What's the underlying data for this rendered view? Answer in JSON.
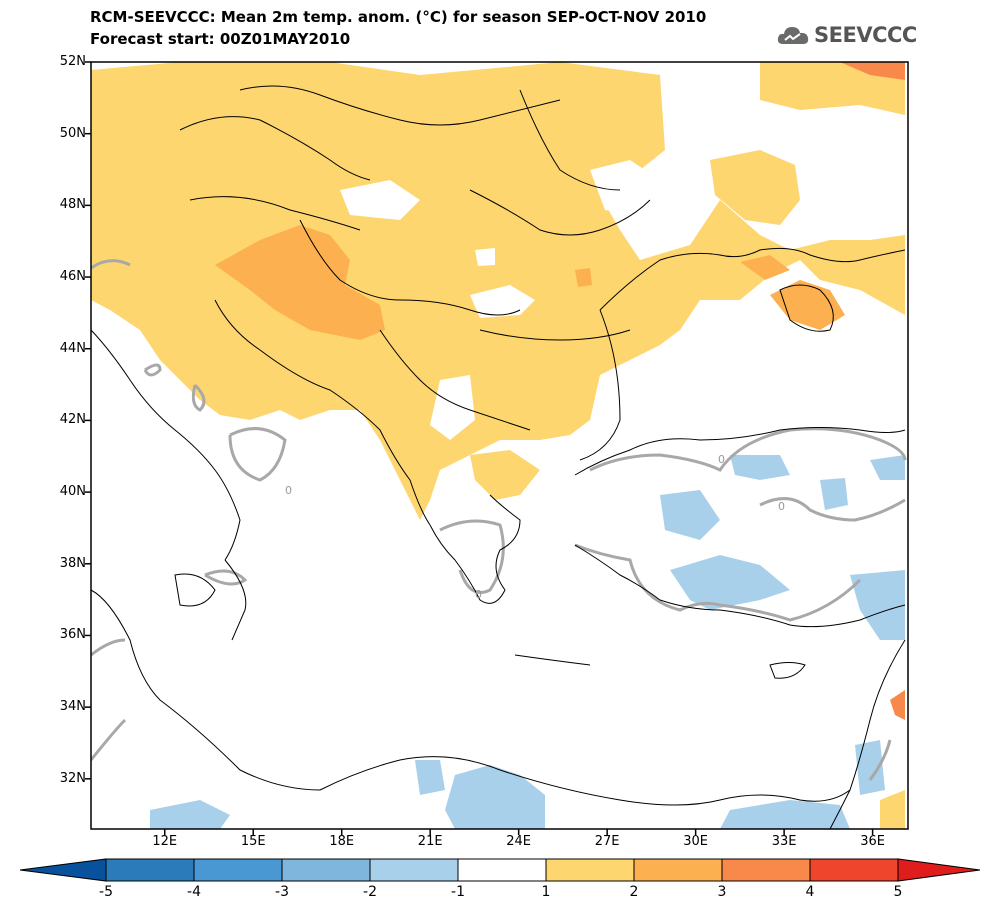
{
  "header": {
    "title_line1": "RCM-SEEVCCC: Mean 2m temp. anom. (°C) for season SEP-OCT-NOV 2010",
    "title_line2": "Forecast start: 00Z01MAY2010"
  },
  "logo": {
    "text": "SEEVCCC",
    "icon": "cloud-icon",
    "color": "#555555"
  },
  "map": {
    "lon_range": [
      9.5,
      37.2
    ],
    "lat_range": [
      30.6,
      52.0
    ],
    "lon_ticks": [
      "12E",
      "15E",
      "18E",
      "21E",
      "24E",
      "27E",
      "30E",
      "33E",
      "36E"
    ],
    "lat_ticks": [
      "52N",
      "50N",
      "48N",
      "46N",
      "44N",
      "42N",
      "40N",
      "38N",
      "36N",
      "34N",
      "32N"
    ],
    "contour_label": "0",
    "colors": {
      "land_line": "#000000",
      "zero_contour": "#a8a8a8",
      "frame": "#000000"
    }
  },
  "colorbar": {
    "levels": [
      "-5",
      "-4",
      "-3",
      "-2",
      "-1",
      "1",
      "2",
      "3",
      "4",
      "5"
    ],
    "colors": [
      "#08519c",
      "#2b7bba",
      "#4a98d3",
      "#7fb6de",
      "#a8d0ea",
      "#ffffff",
      "#fdd670",
      "#fcb04f",
      "#f8894a",
      "#f0452d",
      "#e01d1d"
    ]
  }
}
